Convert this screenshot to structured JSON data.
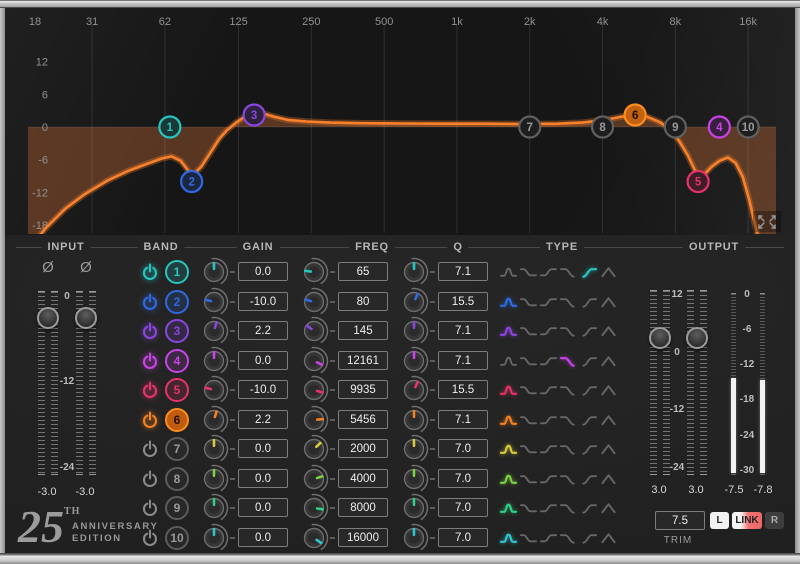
{
  "headers": {
    "input": "INPUT",
    "band": "BAND",
    "gain": "GAIN",
    "freq": "FREQ",
    "q": "Q",
    "type": "TYPE",
    "output": "OUTPUT"
  },
  "display": {
    "freq_ticks": [
      {
        "f": 18,
        "label": "18"
      },
      {
        "f": 31,
        "label": "31"
      },
      {
        "f": 62,
        "label": "62"
      },
      {
        "f": 125,
        "label": "125"
      },
      {
        "f": 250,
        "label": "250"
      },
      {
        "f": 500,
        "label": "500"
      },
      {
        "f": 1000,
        "label": "1k"
      },
      {
        "f": 2000,
        "label": "2k"
      },
      {
        "f": 4000,
        "label": "4k"
      },
      {
        "f": 8000,
        "label": "8k"
      },
      {
        "f": 16000,
        "label": "16k"
      }
    ],
    "db_ticks": [
      {
        "db": 12,
        "label": "12"
      },
      {
        "db": 6,
        "label": "6"
      },
      {
        "db": 0,
        "label": "0"
      },
      {
        "db": -6,
        "label": "-6"
      },
      {
        "db": -12,
        "label": "-12"
      },
      {
        "db": -18,
        "label": "-18"
      }
    ],
    "curve_color": "#f9812c",
    "fill_color": "rgba(205,112,55,0.36)",
    "curve": [
      [
        16.5,
        -23
      ],
      [
        20,
        -18.5
      ],
      [
        24,
        -15
      ],
      [
        29,
        -12.3
      ],
      [
        36,
        -9.8
      ],
      [
        44,
        -8
      ],
      [
        52,
        -6.8
      ],
      [
        60,
        -5.8
      ],
      [
        66,
        -5.4
      ],
      [
        72,
        -6.2
      ],
      [
        78,
        -8.2
      ],
      [
        82,
        -8.6
      ],
      [
        88,
        -7.2
      ],
      [
        96,
        -4.6
      ],
      [
        104,
        -2.2
      ],
      [
        112,
        -0.6
      ],
      [
        122,
        0.8
      ],
      [
        133,
        1.9
      ],
      [
        145,
        2.6
      ],
      [
        158,
        2.5
      ],
      [
        175,
        1.9
      ],
      [
        200,
        1.3
      ],
      [
        240,
        1.0
      ],
      [
        300,
        0.8
      ],
      [
        400,
        0.7
      ],
      [
        600,
        0.65
      ],
      [
        900,
        0.6
      ],
      [
        1300,
        0.6
      ],
      [
        1900,
        0.55
      ],
      [
        2600,
        0.6
      ],
      [
        3300,
        0.8
      ],
      [
        4100,
        1.3
      ],
      [
        4800,
        1.9
      ],
      [
        5456,
        2.3
      ],
      [
        6100,
        1.9
      ],
      [
        6900,
        0.9
      ],
      [
        7600,
        -0.4
      ],
      [
        8300,
        -2.6
      ],
      [
        9000,
        -5.2
      ],
      [
        9600,
        -7.8
      ],
      [
        10000,
        -9.3
      ],
      [
        10600,
        -8.6
      ],
      [
        11300,
        -7.3
      ],
      [
        12200,
        -6.2
      ],
      [
        13200,
        -5.6
      ],
      [
        14200,
        -6.6
      ],
      [
        15200,
        -9.2
      ],
      [
        16200,
        -13.5
      ],
      [
        17200,
        -18.5
      ],
      [
        18400,
        -23.5
      ],
      [
        21000,
        -30
      ]
    ]
  },
  "type_icons": [
    "bell",
    "low-shelf",
    "high-shelf",
    "low-pass",
    "high-pass",
    "band-pass"
  ],
  "bands": [
    {
      "id": "1",
      "color": "#26c5c0",
      "power": true,
      "selected": false,
      "gain": 0,
      "gain_label": "0.0",
      "freq": 65,
      "freq_label": "65",
      "q": 7.1,
      "q_label": "7.1",
      "type": 5
    },
    {
      "id": "2",
      "color": "#2e6ae4",
      "power": true,
      "selected": false,
      "gain": -10,
      "gain_label": "-10.0",
      "freq": 80,
      "freq_label": "80",
      "q": 15.5,
      "q_label": "15.5",
      "type": 1
    },
    {
      "id": "3",
      "color": "#8a46e0",
      "power": true,
      "selected": false,
      "gain": 2.2,
      "gain_label": "2.2",
      "freq": 145,
      "freq_label": "145",
      "q": 7.1,
      "q_label": "7.1",
      "type": 1
    },
    {
      "id": "4",
      "color": "#c844e8",
      "power": true,
      "selected": false,
      "gain": 0,
      "gain_label": "0.0",
      "freq": 12161,
      "freq_label": "12161",
      "q": 7.1,
      "q_label": "7.1",
      "type": 4
    },
    {
      "id": "5",
      "color": "#e63368",
      "power": true,
      "selected": false,
      "gain": -10,
      "gain_label": "-10.0",
      "freq": 9935,
      "freq_label": "9935",
      "q": 15.5,
      "q_label": "15.5",
      "type": 1
    },
    {
      "id": "6",
      "color": "#f5821f",
      "power": true,
      "selected": true,
      "gain": 2.2,
      "gain_label": "2.2",
      "freq": 5456,
      "freq_label": "5456",
      "q": 7.1,
      "q_label": "7.1",
      "type": 1
    },
    {
      "id": "7",
      "color": "#d9cb3c",
      "power": false,
      "selected": false,
      "gain": 0,
      "gain_label": "0.0",
      "freq": 2000,
      "freq_label": "2000",
      "q": 7.0,
      "q_label": "7.0",
      "type": 1
    },
    {
      "id": "8",
      "color": "#7ed044",
      "power": false,
      "selected": false,
      "gain": 0,
      "gain_label": "0.0",
      "freq": 4000,
      "freq_label": "4000",
      "q": 7.0,
      "q_label": "7.0",
      "type": 1
    },
    {
      "id": "9",
      "color": "#2ed186",
      "power": false,
      "selected": false,
      "gain": 0,
      "gain_label": "0.0",
      "freq": 8000,
      "freq_label": "8000",
      "q": 7.0,
      "q_label": "7.0",
      "type": 1
    },
    {
      "id": "10",
      "color": "#2fc7cf",
      "power": false,
      "selected": false,
      "gain": 0,
      "gain_label": "0.0",
      "freq": 16000,
      "freq_label": "16000",
      "q": 7.0,
      "q_label": "7.0",
      "type": 1
    }
  ],
  "input_section": {
    "phase_symbol": "Ø",
    "scale": [
      "0",
      "-12",
      "-24"
    ],
    "fader_values": [
      "-3.0",
      "-3.0"
    ]
  },
  "output_section": {
    "scale": [
      "12",
      "0",
      "-12",
      "-24"
    ],
    "fader_values": [
      "3.0",
      "3.0"
    ],
    "meter_scale": [
      "0",
      "-6",
      "-12",
      "-18",
      "-24",
      "-30"
    ],
    "meter_values": [
      "-7.5",
      "-7.8"
    ]
  },
  "trim": {
    "value": "7.5",
    "label": "TRIM"
  },
  "channel_buttons": {
    "left": "L",
    "link": "LINK",
    "right": "R"
  },
  "logo": {
    "number": "25",
    "ordinal": "TH",
    "line1": "ANNIVERSARY",
    "line2": "EDITION"
  }
}
